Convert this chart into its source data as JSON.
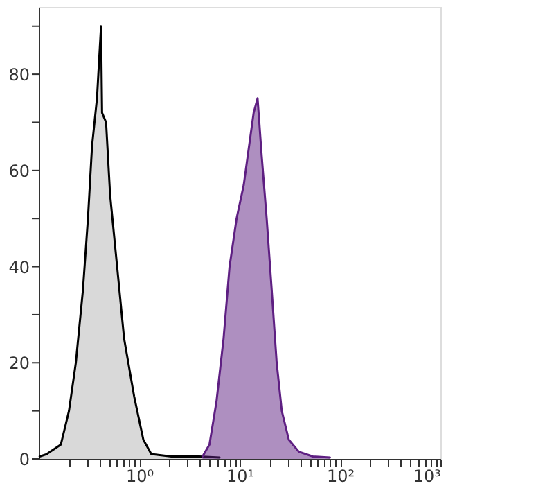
{
  "chart_data": {
    "type": "area",
    "marker": "none",
    "grid": false,
    "xlim": [
      0.1,
      1000
    ],
    "ylim": [
      0,
      94
    ],
    "log": "x",
    "xticks": [
      {
        "value": 0.2,
        "label": null
      },
      {
        "value": 0.3,
        "label": null
      },
      {
        "value": 0.4,
        "label": null
      },
      {
        "value": 0.5,
        "label": null
      },
      {
        "value": 0.6,
        "label": null
      },
      {
        "value": 0.7,
        "label": null
      },
      {
        "value": 0.8,
        "label": null
      },
      {
        "value": 0.9,
        "label": null
      },
      {
        "value": 1,
        "label": "10⁰"
      },
      {
        "value": 2,
        "label": null
      },
      {
        "value": 3,
        "label": null
      },
      {
        "value": 4,
        "label": null
      },
      {
        "value": 5,
        "label": null
      },
      {
        "value": 6,
        "label": null
      },
      {
        "value": 7,
        "label": null
      },
      {
        "value": 8,
        "label": null
      },
      {
        "value": 9,
        "label": null
      },
      {
        "value": 10,
        "label": "10¹"
      },
      {
        "value": 20,
        "label": null
      },
      {
        "value": 30,
        "label": null
      },
      {
        "value": 40,
        "label": null
      },
      {
        "value": 50,
        "label": null
      },
      {
        "value": 60,
        "label": null
      },
      {
        "value": 70,
        "label": null
      },
      {
        "value": 80,
        "label": null
      },
      {
        "value": 90,
        "label": null
      },
      {
        "value": 100,
        "label": "10²"
      },
      {
        "value": 200,
        "label": null
      },
      {
        "value": 300,
        "label": null
      },
      {
        "value": 400,
        "label": null
      },
      {
        "value": 500,
        "label": null
      },
      {
        "value": 600,
        "label": null
      },
      {
        "value": 700,
        "label": null
      },
      {
        "value": 800,
        "label": null
      },
      {
        "value": 900,
        "label": null
      },
      {
        "value": 1000,
        "label": "10³"
      }
    ],
    "yticks": [
      0,
      {
        "value": 10,
        "label": null
      },
      20,
      {
        "value": 30,
        "label": null
      },
      40,
      {
        "value": 50,
        "label": null
      },
      60,
      {
        "value": 70,
        "label": null
      },
      80,
      {
        "value": 90,
        "label": null
      }
    ],
    "series": [
      {
        "color": "#000000",
        "x": [
          0.102,
          0.12,
          0.166,
          0.2,
          0.234,
          0.275,
          0.309,
          0.339,
          0.38,
          0.417,
          0.427,
          0.468,
          0.513,
          0.603,
          0.708,
          0.891,
          1.1,
          1.32,
          2.09,
          3.98,
          6.31
        ],
        "values": [
          0.5,
          1,
          3,
          10,
          20,
          35,
          50,
          65,
          75,
          90,
          72,
          70,
          55,
          40,
          25,
          13,
          4,
          1,
          0.5,
          0.5,
          0.3
        ]
      },
      {
        "color": "#5e1f82",
        "x": [
          4.27,
          5.01,
          5.89,
          6.92,
          7.94,
          9.33,
          11.0,
          12.6,
          13.8,
          15.1,
          16.6,
          18.6,
          20.9,
          23.4,
          26.3,
          30.9,
          38.9,
          53.7,
          79.4
        ],
        "values": [
          0.5,
          3,
          12,
          25,
          40,
          50,
          57,
          66,
          72,
          75,
          63,
          50,
          35,
          20,
          10,
          4,
          1.5,
          0.5,
          0.3
        ]
      }
    ]
  }
}
